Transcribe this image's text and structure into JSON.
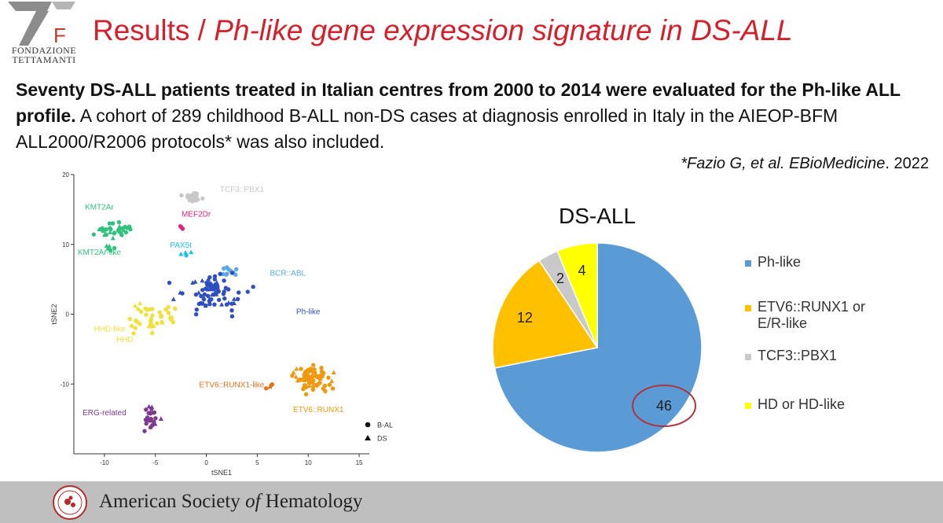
{
  "header": {
    "org_line1": "FONDAZIONE",
    "org_line2": "TETTAMANTI",
    "title_plain": "Results / ",
    "title_italic": "Ph-like gene expression signature in DS-ALL"
  },
  "intro": {
    "bold_text": "Seventy DS-ALL patients treated in Italian centres from 2000 to 2014 were evaluated for the Ph-like ALL profile.",
    "regular_text": " A cohort of 289 childhood B-ALL non-DS cases at diagnosis enrolled in Italy in the AIEOP-BFM ALL2000/R2006 protocols* was also included."
  },
  "reference": {
    "prefix": "*",
    "authors_journal": "Fazio G, et al. EBioMedicine",
    "year": ". 2022"
  },
  "footer": {
    "society_prefix": "American Society ",
    "society_of": "of",
    "society_suffix": " Hematology"
  },
  "chart_data": [
    {
      "type": "scatter",
      "xlabel": "tSNE1",
      "ylabel": "tSNE2",
      "xlim": [
        -13,
        16
      ],
      "ylim": [
        -20,
        20
      ],
      "xticks": [
        -10,
        -5,
        0,
        5,
        10,
        15
      ],
      "yticks": [
        -10,
        0,
        10,
        20
      ],
      "legend": [
        {
          "label": "B-ALL",
          "marker": "circle"
        },
        {
          "label": "DS",
          "marker": "triangle"
        }
      ],
      "clusters": [
        {
          "name": "TCF3::PBX1",
          "color": "#c8c8c8",
          "center": [
            -1.5,
            17
          ],
          "spread": [
            1.3,
            1.0
          ],
          "n": 22,
          "label_at": [
            3.5,
            17.5
          ]
        },
        {
          "name": "MEF2Dr",
          "color": "#e0247e",
          "center": [
            -2.5,
            12.5
          ],
          "spread": [
            0.3,
            0.4
          ],
          "n": 3,
          "label_at": [
            -1,
            14
          ]
        },
        {
          "name": "KMT2Ar",
          "color": "#2ec27e",
          "center": [
            -9,
            12
          ],
          "spread": [
            2.2,
            1.3
          ],
          "n": 30,
          "label_at": [
            -10.5,
            15
          ]
        },
        {
          "name": "KMT2Ar-like",
          "color": "#2ec27e",
          "center": [
            -9.5,
            9.5
          ],
          "spread": [
            0.8,
            0.5
          ],
          "n": 5,
          "label_at": [
            -10.5,
            8.5
          ]
        },
        {
          "name": "PAX5t",
          "color": "#1ec0e8",
          "center": [
            -2,
            8.5
          ],
          "spread": [
            0.6,
            0.8
          ],
          "n": 4,
          "label_at": [
            -2.5,
            9.5
          ]
        },
        {
          "name": "BCR::ABL",
          "color": "#5aa9e6",
          "center": [
            2,
            6
          ],
          "spread": [
            1.5,
            1.0
          ],
          "n": 10,
          "label_at": [
            8,
            5.5
          ]
        },
        {
          "name": "Ph-like",
          "color": "#2f4fc0",
          "center": [
            1,
            3
          ],
          "spread": [
            3.5,
            3.5
          ],
          "n": 80,
          "label_at": [
            10,
            0
          ]
        },
        {
          "name": "HHD-like",
          "color": "#f2e03a",
          "center": [
            -5,
            -0.5
          ],
          "spread": [
            3.0,
            2.5
          ],
          "n": 45,
          "label_at": [
            -9.5,
            -2.5
          ]
        },
        {
          "name": "HHD",
          "color": "#f2e03a",
          "center": [
            -7,
            -3
          ],
          "spread": [
            0.5,
            0.3
          ],
          "n": 1,
          "label_at": [
            -8,
            -4
          ]
        },
        {
          "name": "ETV6::RUNX1",
          "color": "#f0980e",
          "center": [
            10.5,
            -9.5
          ],
          "spread": [
            2.3,
            2.2
          ],
          "n": 70,
          "label_at": [
            11,
            -14
          ]
        },
        {
          "name": "ETV6::RUNX1-like",
          "color": "#e8711a",
          "center": [
            6,
            -10.5
          ],
          "spread": [
            0.7,
            0.5
          ],
          "n": 4,
          "label_at": [
            2.5,
            -10.5
          ]
        },
        {
          "name": "ERG-related",
          "color": "#7b3a8f",
          "center": [
            -5.5,
            -15
          ],
          "spread": [
            1.2,
            2.2
          ],
          "n": 24,
          "label_at": [
            -10,
            -14.5
          ]
        }
      ]
    },
    {
      "type": "pie",
      "title": "DS-ALL",
      "slices": [
        {
          "label": "Ph-like",
          "value": 46,
          "color": "#5b9bd5"
        },
        {
          "label": "ETV6::RUNX1 or E/R-like",
          "value": 12,
          "color": "#ffc000"
        },
        {
          "label": "TCF3::PBX1",
          "value": 2,
          "color": "#c9c9c9"
        },
        {
          "label": "HD or HD-like",
          "value": 4,
          "color": "#ffff00"
        }
      ],
      "legend_position": "right",
      "highlight": {
        "value": 46,
        "color": "#b0343d"
      }
    }
  ]
}
